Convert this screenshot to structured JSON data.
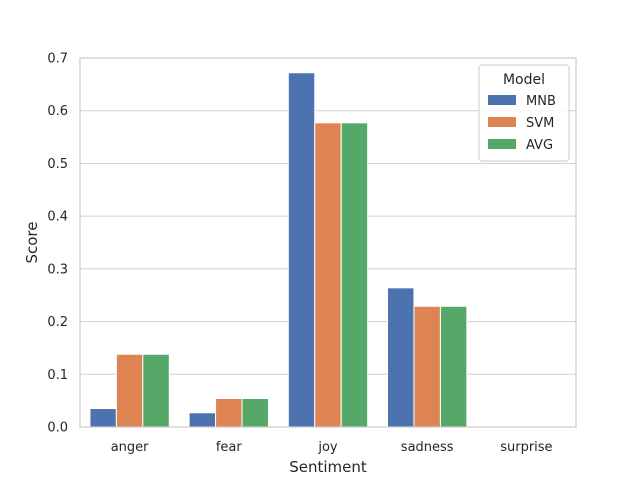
{
  "chart_data": {
    "type": "bar",
    "categories": [
      "anger",
      "fear",
      "joy",
      "sadness",
      "surprise"
    ],
    "series": [
      {
        "name": "MNB",
        "color": "#4c72b0",
        "values": [
          0.035,
          0.027,
          0.672,
          0.264,
          0.0
        ]
      },
      {
        "name": "SVM",
        "color": "#dd8452",
        "values": [
          0.138,
          0.054,
          0.577,
          0.229,
          0.0
        ]
      },
      {
        "name": "AVG",
        "color": "#55a868",
        "values": [
          0.138,
          0.054,
          0.577,
          0.229,
          0.0
        ]
      }
    ],
    "xlabel": "Sentiment",
    "ylabel": "Score",
    "ylim": [
      0,
      0.7
    ],
    "yticks": [
      "0.0",
      "0.1",
      "0.2",
      "0.3",
      "0.4",
      "0.5",
      "0.6",
      "0.7"
    ],
    "grid": "horizontal",
    "legend": {
      "title": "Model",
      "placement": "top-right"
    }
  }
}
